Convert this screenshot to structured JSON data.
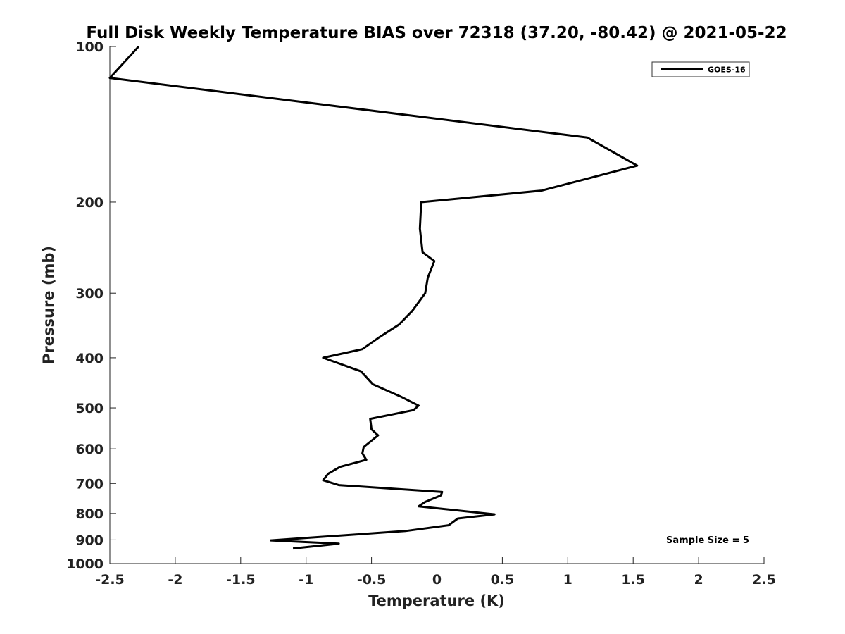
{
  "chart_data": {
    "type": "line",
    "title": "Full Disk Weekly Temperature BIAS over 72318 (37.20, -80.42) @ 2021-05-22",
    "xlabel": "Temperature (K)",
    "ylabel": "Pressure (mb)",
    "xlim": [
      -2.5,
      2.5
    ],
    "ylim": [
      100,
      1000
    ],
    "yscale": "log",
    "y_reversed": true,
    "xticks": [
      -2.5,
      -2,
      -1.5,
      -1,
      -0.5,
      0,
      0.5,
      1,
      1.5,
      2,
      2.5
    ],
    "xtick_labels": [
      "-2.5",
      "-2",
      "-1.5",
      "-1",
      "-0.5",
      "0",
      "0.5",
      "1",
      "1.5",
      "2",
      "2.5"
    ],
    "yticks": [
      100,
      200,
      300,
      400,
      500,
      600,
      700,
      800,
      900,
      1000
    ],
    "ytick_labels": [
      "100",
      "200",
      "300",
      "400",
      "500",
      "600",
      "700",
      "800",
      "900",
      "1000"
    ],
    "grid": false,
    "legend_position": "top-right",
    "series": [
      {
        "name": "GOES-16",
        "color": "#000000",
        "points": [
          [
            -2.28,
            100
          ],
          [
            -2.5,
            115
          ],
          [
            1.15,
            150
          ],
          [
            1.53,
            170
          ],
          [
            0.8,
            190
          ],
          [
            -0.12,
            200
          ],
          [
            -0.13,
            225
          ],
          [
            -0.11,
            250
          ],
          [
            -0.02,
            260
          ],
          [
            -0.07,
            280
          ],
          [
            -0.09,
            300
          ],
          [
            -0.19,
            325
          ],
          [
            -0.29,
            345
          ],
          [
            -0.44,
            365
          ],
          [
            -0.57,
            385
          ],
          [
            -0.87,
            400
          ],
          [
            -0.58,
            425
          ],
          [
            -0.49,
            450
          ],
          [
            -0.28,
            475
          ],
          [
            -0.14,
            495
          ],
          [
            -0.18,
            505
          ],
          [
            -0.51,
            525
          ],
          [
            -0.5,
            550
          ],
          [
            -0.45,
            565
          ],
          [
            -0.56,
            595
          ],
          [
            -0.57,
            612
          ],
          [
            -0.54,
            630
          ],
          [
            -0.74,
            650
          ],
          [
            -0.83,
            670
          ],
          [
            -0.87,
            690
          ],
          [
            -0.75,
            705
          ],
          [
            0.04,
            727
          ],
          [
            0.03,
            738
          ],
          [
            -0.09,
            760
          ],
          [
            -0.14,
            775
          ],
          [
            0.44,
            803
          ],
          [
            0.16,
            818
          ],
          [
            0.09,
            843
          ],
          [
            -0.24,
            865
          ],
          [
            -1.27,
            902
          ],
          [
            -0.75,
            915
          ],
          [
            -1.1,
            935
          ]
        ]
      }
    ],
    "annotation": "Sample Size = 5"
  }
}
